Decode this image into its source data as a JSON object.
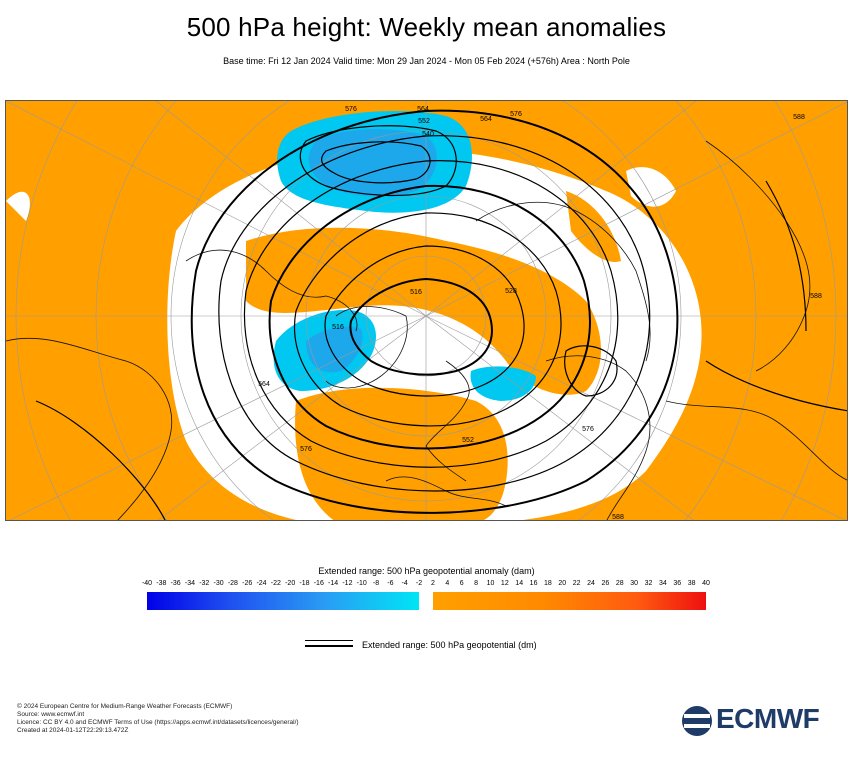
{
  "header": {
    "title": "500 hPa height: Weekly mean anomalies",
    "subtitle": "Base time: Fri 12 Jan 2024 Valid time: Mon 29 Jan 2024 - Mon 05 Feb 2024 (+576h) Area : North Pole"
  },
  "map": {
    "contour_labels": [
      "576",
      "564",
      "552",
      "540",
      "516",
      "528",
      "564",
      "576",
      "564",
      "552",
      "576",
      "588",
      "588",
      "588",
      "516",
      "576"
    ],
    "colors": {
      "positive": "#ffa000",
      "negative": "#00c8f0",
      "negative_core": "#1ea8ec",
      "contour": "#000000"
    }
  },
  "colorbar": {
    "title": "Extended range: 500 hPa geopotential anomaly (dam)",
    "ticks": [
      "-40",
      "-38",
      "-36",
      "-34",
      "-32",
      "-30",
      "-28",
      "-26",
      "-24",
      "-22",
      "-20",
      "-18",
      "-16",
      "-14",
      "-12",
      "-10",
      "-8",
      "-6",
      "-4",
      "-2",
      "2",
      "4",
      "6",
      "8",
      "10",
      "12",
      "14",
      "16",
      "18",
      "20",
      "22",
      "24",
      "26",
      "28",
      "30",
      "32",
      "34",
      "36",
      "38",
      "40"
    ]
  },
  "legend": {
    "label": "Extended range: 500 hPa geopotential (dm)"
  },
  "credits": [
    "© 2024 European Centre for Medium-Range Weather Forecasts (ECMWF)",
    "Source: www.ecmwf.int",
    "Licence: CC BY 4.0 and ECMWF Terms of Use (https://apps.ecmwf.int/datasets/licences/general/)",
    "Created at 2024-01-12T22:29:13.472Z"
  ],
  "logo": {
    "text": "ECMWF"
  }
}
